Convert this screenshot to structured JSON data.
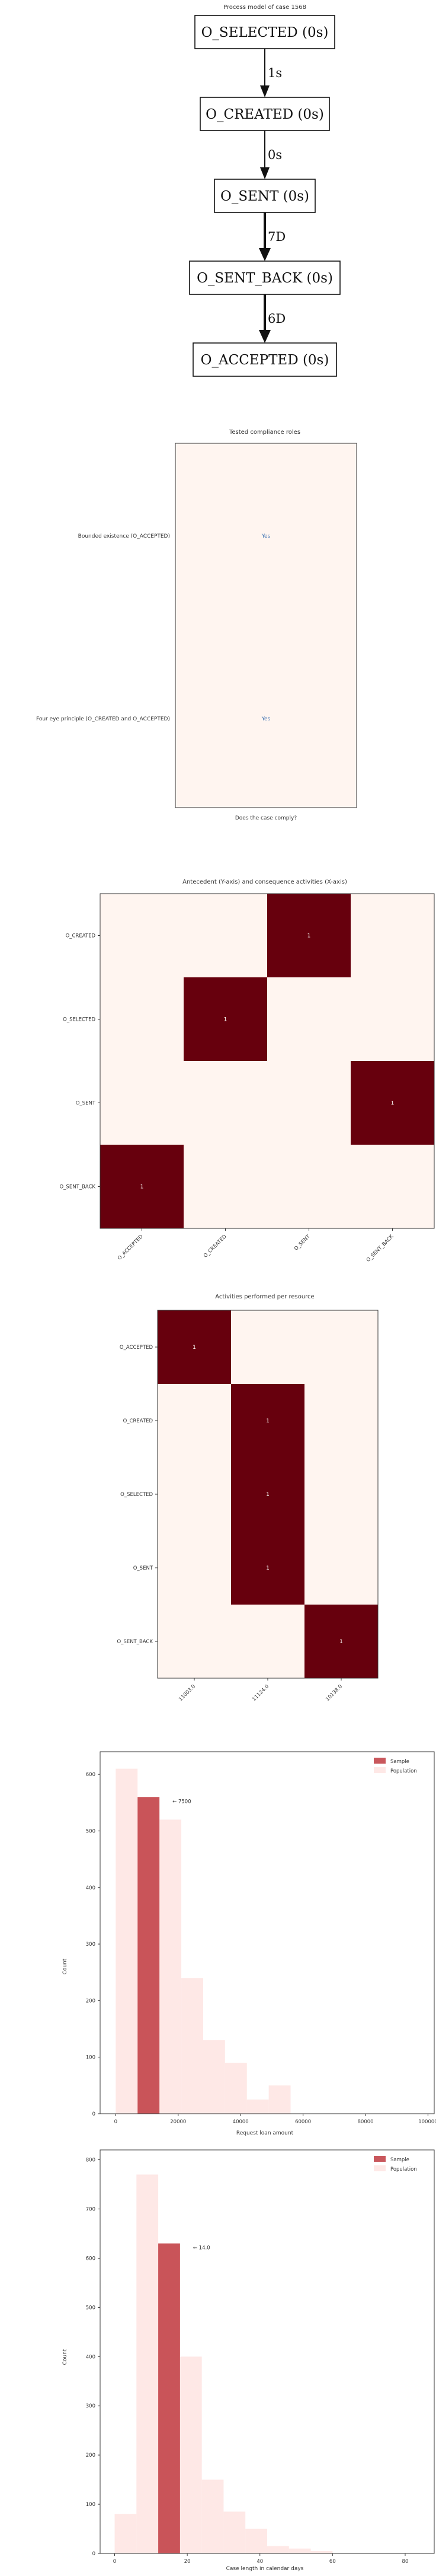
{
  "process_model": {
    "title": "Process model of case 1568",
    "nodes": [
      "O_SELECTED (0s)",
      "O_CREATED (0s)",
      "O_SENT (0s)",
      "O_SENT_BACK (0s)",
      "O_ACCEPTED (0s)"
    ],
    "edges": [
      "1s",
      "0s",
      "7D",
      "6D"
    ]
  },
  "chart_data": [
    {
      "type": "table",
      "title": "Tested compliance roles",
      "xlabel": "Does the case comply?",
      "rows": [
        "Bounded existence (O_ACCEPTED)",
        "Four eye principle (O_CREATED and O_ACCEPTED)"
      ],
      "values": [
        "Yes",
        "Yes"
      ]
    },
    {
      "type": "heatmap",
      "title": "Antecedent (Y-axis) and consequence activities (X-axis)",
      "x_categories": [
        "O_ACCEPTED",
        "O_CREATED",
        "O_SENT",
        "O_SENT_BACK"
      ],
      "y_categories": [
        "O_CREATED",
        "O_SELECTED",
        "O_SENT",
        "O_SENT_BACK"
      ],
      "cells": [
        {
          "x": "O_SENT",
          "y": "O_CREATED",
          "value": 1
        },
        {
          "x": "O_CREATED",
          "y": "O_SELECTED",
          "value": 1
        },
        {
          "x": "O_SENT_BACK",
          "y": "O_SENT",
          "value": 1
        },
        {
          "x": "O_ACCEPTED",
          "y": "O_SENT_BACK",
          "value": 1
        }
      ]
    },
    {
      "type": "heatmap",
      "title": "Activities performed per resource",
      "x_categories": [
        "11003.0",
        "11124.0",
        "10138.0"
      ],
      "y_categories": [
        "O_ACCEPTED",
        "O_CREATED",
        "O_SELECTED",
        "O_SENT",
        "O_SENT_BACK"
      ],
      "cells": [
        {
          "x": "11003.0",
          "y": "O_ACCEPTED",
          "value": 1
        },
        {
          "x": "11124.0",
          "y": "O_CREATED",
          "value": 1
        },
        {
          "x": "11124.0",
          "y": "O_SELECTED",
          "value": 1
        },
        {
          "x": "11124.0",
          "y": "O_SENT",
          "value": 1
        },
        {
          "x": "10138.0",
          "y": "O_SENT_BACK",
          "value": 1
        }
      ]
    },
    {
      "type": "bar",
      "xlabel": "Request loan amount",
      "ylabel": "Count",
      "xlim": [
        -5000,
        102000
      ],
      "ylim": [
        0,
        640
      ],
      "xticks": [
        0,
        20000,
        40000,
        60000,
        80000,
        100000
      ],
      "yticks": [
        0,
        100,
        200,
        300,
        400,
        500,
        600
      ],
      "bin_edges": [
        0,
        7000,
        14000,
        21000,
        28000,
        35000,
        42000,
        49000,
        56000
      ],
      "legend": "top-right",
      "annotation": "← 7500",
      "annotation_x": 7500,
      "series": [
        {
          "name": "Sample",
          "color": "#c0393f",
          "bins": [
            {
              "start": 7000,
              "end": 14000,
              "value": 560
            }
          ]
        },
        {
          "name": "Population",
          "color": "#fde0dd",
          "values": [
            610,
            560,
            520,
            240,
            130,
            90,
            25,
            50
          ]
        }
      ]
    },
    {
      "type": "bar",
      "xlabel": "Case length in calendar days",
      "ylabel": "Count",
      "xlim": [
        -4,
        88
      ],
      "ylim": [
        0,
        820
      ],
      "xticks": [
        0,
        20,
        40,
        60,
        80
      ],
      "yticks": [
        0,
        100,
        200,
        300,
        400,
        500,
        600,
        700,
        800
      ],
      "bin_edges": [
        0,
        6,
        12,
        18,
        24,
        30,
        36,
        42,
        48,
        54,
        60
      ],
      "legend": "top-right",
      "annotation": "← 14.0",
      "annotation_x": 14,
      "series": [
        {
          "name": "Sample",
          "color": "#c0393f",
          "bins": [
            {
              "start": 12,
              "end": 18,
              "value": 630
            }
          ]
        },
        {
          "name": "Population",
          "color": "#fde0dd",
          "values": [
            80,
            770,
            630,
            400,
            150,
            85,
            50,
            15,
            10,
            5
          ]
        }
      ]
    }
  ]
}
